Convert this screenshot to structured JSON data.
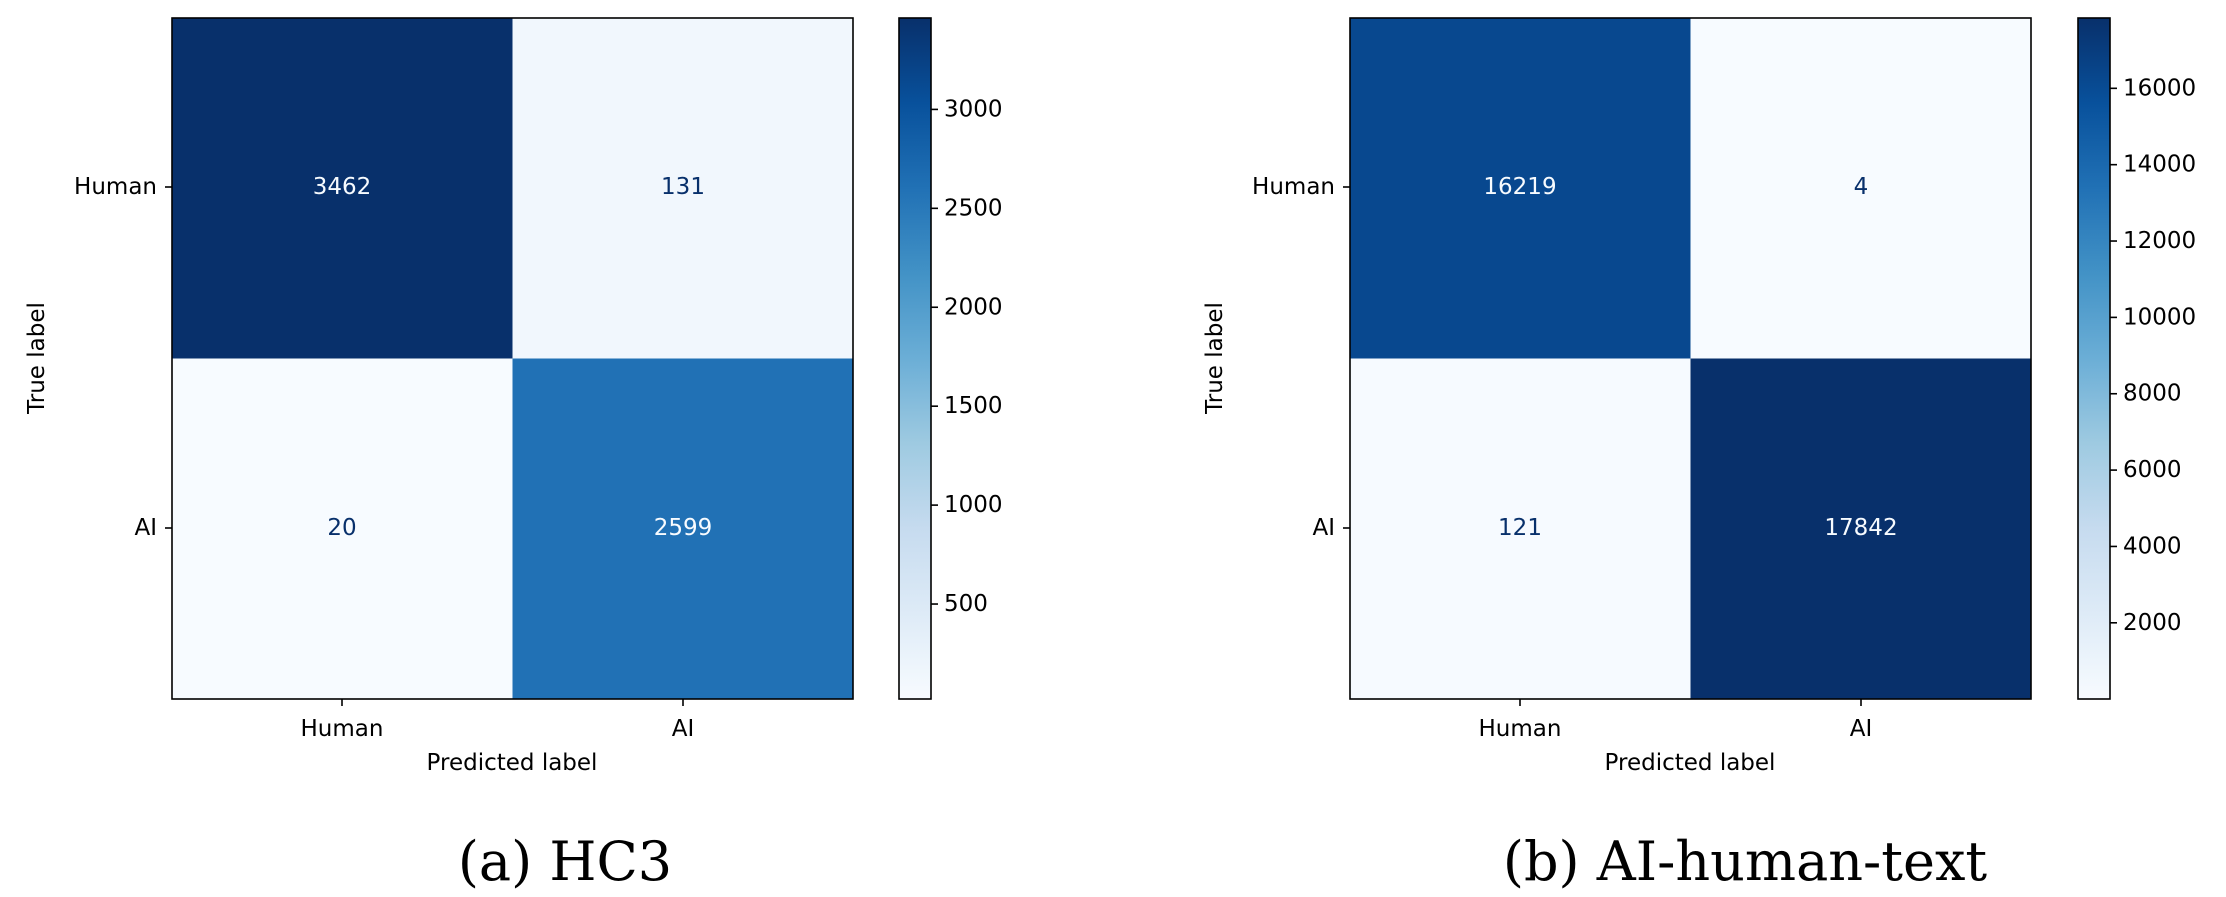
{
  "chart_data": [
    {
      "type": "heatmap",
      "caption": "(a) HC3",
      "xlabel": "Predicted label",
      "ylabel": "True label",
      "x_categories": [
        "Human",
        "AI"
      ],
      "y_categories": [
        "Human",
        "AI"
      ],
      "matrix": [
        [
          3462,
          131
        ],
        [
          20,
          2599
        ]
      ],
      "colormap": "Blues",
      "colorbar": {
        "min": 20,
        "max": 3462,
        "ticks": [
          500,
          1000,
          1500,
          2000,
          2500,
          3000
        ]
      }
    },
    {
      "type": "heatmap",
      "caption": "(b) AI-human-text",
      "xlabel": "Predicted label",
      "ylabel": "True label",
      "x_categories": [
        "Human",
        "AI"
      ],
      "y_categories": [
        "Human",
        "AI"
      ],
      "matrix": [
        [
          16219,
          4
        ],
        [
          121,
          17842
        ]
      ],
      "colormap": "Blues",
      "colorbar": {
        "min": 4,
        "max": 17842,
        "ticks": [
          2000,
          4000,
          6000,
          8000,
          10000,
          12000,
          14000,
          16000
        ]
      }
    }
  ]
}
